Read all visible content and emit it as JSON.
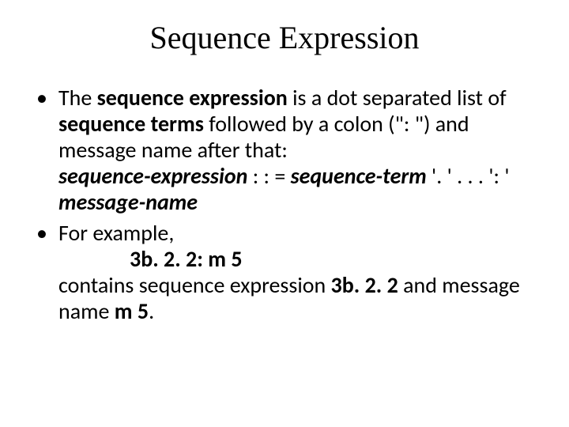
{
  "slide": {
    "title": "Sequence Expression",
    "b1": {
      "p1a": "The ",
      "p1b": "sequence expression",
      "p1c": " is a dot separated list of ",
      "p1d": "sequence terms",
      "p1e": " followed by a colon (\": \") and message name after that:",
      "p2a": "sequence-expression",
      "p2b": " : : =  ",
      "p2c": "sequence-term",
      "p2d": " '. '  . . .  ': ' ",
      "p2e": "message-name"
    },
    "b2": {
      "p1": "For example,",
      "p2": "3b. 2. 2: m 5",
      "p3a": "contains sequence expression ",
      "p3b": "3b. 2. 2",
      "p3c": " and message name ",
      "p3d": "m 5",
      "p3e": "."
    }
  }
}
